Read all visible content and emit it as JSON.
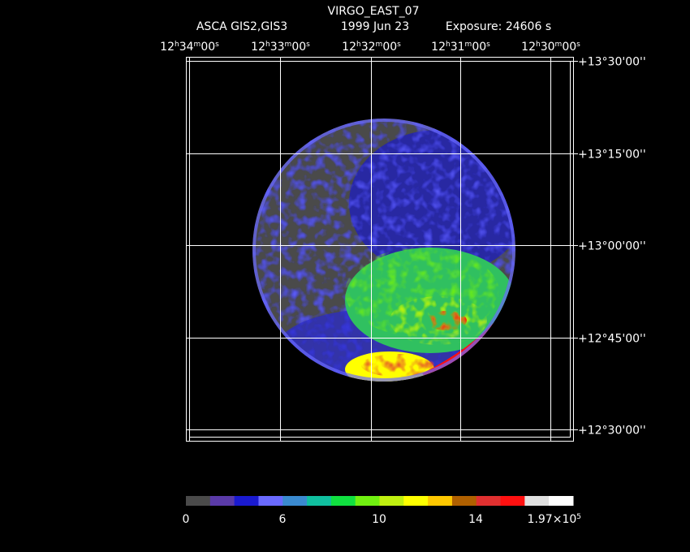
{
  "header": {
    "title": "VIRGO_EAST_07",
    "instrument": "ASCA GIS2,GIS3",
    "date": "1999 Jun 23",
    "exposure": "Exposure: 24606 s"
  },
  "ra_labels": [
    [
      "12",
      "h",
      "34",
      "m",
      "00",
      "s"
    ],
    [
      "12",
      "h",
      "33",
      "m",
      "00",
      "s"
    ],
    [
      "12",
      "h",
      "32",
      "m",
      "00",
      "s"
    ],
    [
      "12",
      "h",
      "31",
      "m",
      "00",
      "s"
    ],
    [
      "12",
      "h",
      "30",
      "m",
      "00",
      "s"
    ]
  ],
  "dec_labels": [
    "+13°30'00''",
    "+13°15'00''",
    "+13°00'00''",
    "+12°45'00''",
    "+12°30'00''"
  ],
  "colorbar": {
    "colors": [
      "#4a4a4a",
      "#5a3aa8",
      "#1a1ad0",
      "#6a6aff",
      "#3a8ad0",
      "#10c0a0",
      "#10e040",
      "#70f010",
      "#c0f010",
      "#ffff00",
      "#ffc800",
      "#b06000",
      "#e03030",
      "#ff1010",
      "#e0e0e0",
      "#ffffff"
    ],
    "labels": [
      [
        "0"
      ],
      [
        "6"
      ],
      [
        "10"
      ],
      [
        "14"
      ],
      [
        "1.97×10",
        "5"
      ]
    ]
  }
}
